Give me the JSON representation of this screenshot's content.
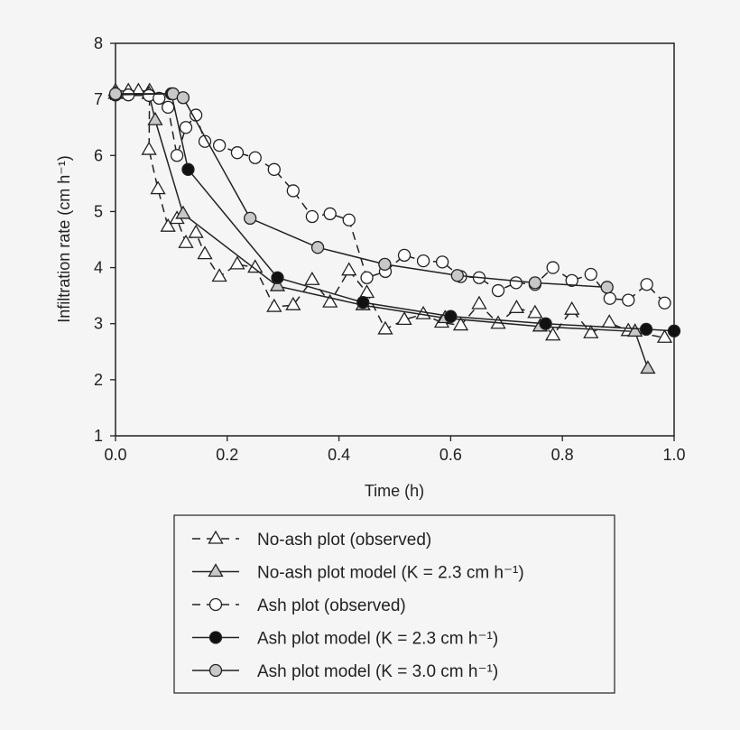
{
  "chart_data": {
    "type": "line",
    "xlabel": "Time (h)",
    "ylabel": "Infiltration rate (cm h⁻¹)",
    "xlim": [
      0,
      1
    ],
    "ylim": [
      1,
      8
    ],
    "xticks": [
      "0.0",
      "0.2",
      "0.4",
      "0.6",
      "0.8",
      "1.0"
    ],
    "yticks": [
      "1",
      "2",
      "3",
      "4",
      "5",
      "6",
      "7",
      "8"
    ],
    "grid": false,
    "legend_position": "below",
    "series": [
      {
        "name": "No-ash plot (observed)",
        "style": "dashed",
        "marker": "triangle-open",
        "x": [
          0,
          0.023,
          0.041,
          0.061,
          0.06,
          0.076,
          0.094,
          0.11,
          0.126,
          0.144,
          0.16,
          0.186,
          0.218,
          0.25,
          0.284,
          0.318,
          0.352,
          0.384,
          0.418,
          0.45,
          0.483,
          0.517,
          0.551,
          0.584,
          0.618,
          0.651,
          0.685,
          0.718,
          0.751,
          0.783,
          0.817,
          0.851,
          0.884,
          0.918,
          0.983
        ],
        "y": [
          7.15,
          7.15,
          7.15,
          7.15,
          6.1,
          5.4,
          4.73,
          4.87,
          4.44,
          4.62,
          4.24,
          3.84,
          4.06,
          4.0,
          3.3,
          3.33,
          3.78,
          3.38,
          3.95,
          3.55,
          2.9,
          3.07,
          3.17,
          3.02,
          2.97,
          3.35,
          3.0,
          3.28,
          3.19,
          2.79,
          3.25,
          2.83,
          3.02,
          2.87,
          2.75
        ]
      },
      {
        "name": "No-ash plot model (K = 2.3 cm h⁻¹)",
        "style": "solid",
        "marker": "triangle-gray",
        "x": [
          0,
          0.06,
          0.071,
          0.121,
          0.29,
          0.443,
          0.59,
          0.76,
          0.93,
          0.953
        ],
        "y": [
          7.1,
          7.1,
          6.63,
          4.96,
          3.67,
          3.33,
          3.1,
          2.95,
          2.86,
          2.2
        ]
      },
      {
        "name": "Ash plot (observed)",
        "style": "dashed",
        "marker": "circle-open",
        "x": [
          0,
          0.023,
          0.06,
          0.078,
          0.094,
          0.11,
          0.126,
          0.144,
          0.16,
          0.186,
          0.218,
          0.25,
          0.284,
          0.318,
          0.352,
          0.384,
          0.418,
          0.45,
          0.483,
          0.517,
          0.551,
          0.585,
          0.618,
          0.651,
          0.685,
          0.717,
          0.751,
          0.783,
          0.817,
          0.851,
          0.885,
          0.918,
          0.951,
          0.983
        ],
        "y": [
          7.08,
          7.08,
          7.07,
          7.02,
          6.86,
          6.0,
          6.5,
          6.72,
          6.25,
          6.18,
          6.05,
          5.96,
          5.75,
          5.37,
          4.91,
          4.96,
          4.85,
          3.82,
          3.93,
          4.22,
          4.12,
          4.1,
          3.84,
          3.82,
          3.59,
          3.73,
          3.7,
          4.0,
          3.77,
          3.88,
          3.45,
          3.42,
          3.7,
          3.37
        ]
      },
      {
        "name": "Ash plot model (K = 2.3 cm h⁻¹)",
        "style": "solid",
        "marker": "circle-filled",
        "x": [
          0,
          0.1,
          0.13,
          0.29,
          0.443,
          0.6,
          0.77,
          0.95,
          1.0
        ],
        "y": [
          7.08,
          7.1,
          5.75,
          3.82,
          3.38,
          3.13,
          3.0,
          2.9,
          2.87
        ]
      },
      {
        "name": "Ash plot model (K = 3.0 cm h⁻¹)",
        "style": "solid",
        "marker": "circle-gray",
        "x": [
          0,
          0.103,
          0.121,
          0.241,
          0.362,
          0.482,
          0.612,
          0.751,
          0.88
        ],
        "y": [
          7.1,
          7.1,
          7.03,
          4.88,
          4.36,
          4.06,
          3.86,
          3.73,
          3.65
        ]
      }
    ]
  }
}
